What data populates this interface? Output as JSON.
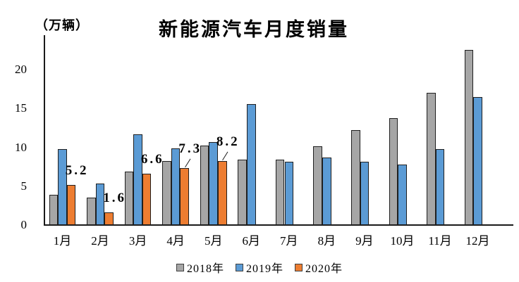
{
  "unit_label": "（万辆）",
  "title": "新能源汽车月度销量",
  "chart_data": {
    "type": "bar",
    "title": "新能源汽车月度销量",
    "ylabel": "（万辆）",
    "xlabel": "",
    "categories": [
      "1月",
      "2月",
      "3月",
      "4月",
      "5月",
      "6月",
      "7月",
      "8月",
      "9月",
      "10月",
      "11月",
      "12月"
    ],
    "series": [
      {
        "name": "2018年",
        "color": "#a6a6a6",
        "values": [
          3.9,
          3.5,
          6.9,
          8.2,
          10.2,
          8.4,
          8.4,
          10.1,
          12.2,
          13.8,
          17.0,
          22.5
        ]
      },
      {
        "name": "2019年",
        "color": "#5b9bd5",
        "values": [
          9.8,
          5.3,
          11.7,
          9.9,
          10.7,
          15.6,
          8.1,
          8.7,
          8.1,
          7.8,
          9.8,
          16.5
        ]
      },
      {
        "name": "2020年",
        "color": "#ed7d31",
        "values": [
          5.2,
          1.6,
          6.6,
          7.3,
          8.2,
          null,
          null,
          null,
          null,
          null,
          null,
          null
        ]
      }
    ],
    "data_labels": [
      {
        "month": "1月",
        "text": "5.2",
        "leader": false
      },
      {
        "month": "2月",
        "text": "1.6",
        "leader": false
      },
      {
        "month": "3月",
        "text": "6.6",
        "leader": false
      },
      {
        "month": "4月",
        "text": "7.3",
        "leader": true
      },
      {
        "month": "5月",
        "text": "8.2",
        "leader": true
      }
    ],
    "yticks": [
      0,
      5,
      10,
      15,
      20
    ],
    "ylim": [
      0,
      24
    ],
    "grid": false,
    "legend_position": "bottom",
    "bar_border_color": "#1f1f1f",
    "axis_color": "#1a1a1a"
  }
}
